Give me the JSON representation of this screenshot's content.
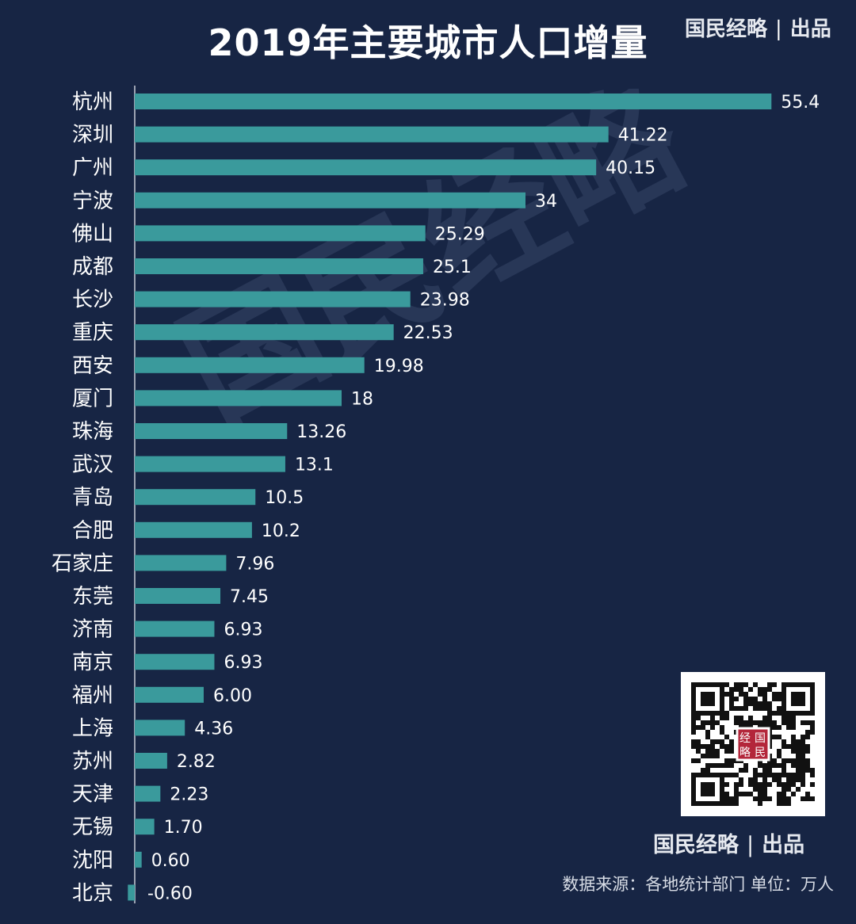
{
  "header": {
    "title": "2019年主要城市人口增量",
    "brand": "国民经略",
    "brand_suffix": "出品"
  },
  "watermark": "国民经略",
  "qr": {
    "label_1": "经",
    "label_2": "国",
    "label_3": "略",
    "label_4": "民"
  },
  "footer": {
    "brand": "国民经略",
    "brand_suffix": "出品",
    "source": "数据来源：各地统计部门  单位：万人"
  },
  "colors": {
    "background": "#172544",
    "bar": "#3a9a9c",
    "axis": "#c8cdd6",
    "text": "#ffffff"
  },
  "chart_data": {
    "type": "bar",
    "orientation": "horizontal",
    "title": "2019年主要城市人口增量",
    "unit": "万人",
    "categories": [
      "杭州",
      "深圳",
      "广州",
      "宁波",
      "佛山",
      "成都",
      "长沙",
      "重庆",
      "西安",
      "厦门",
      "珠海",
      "武汉",
      "青岛",
      "合肥",
      "石家庄",
      "东莞",
      "济南",
      "南京",
      "福州",
      "上海",
      "苏州",
      "天津",
      "无锡",
      "沈阳",
      "北京"
    ],
    "values": [
      55.4,
      41.22,
      40.15,
      34,
      25.29,
      25.1,
      23.98,
      22.53,
      19.98,
      18,
      13.26,
      13.1,
      10.5,
      10.2,
      7.96,
      7.45,
      6.93,
      6.93,
      6.0,
      4.36,
      2.82,
      2.23,
      1.7,
      0.6,
      -0.6
    ],
    "value_labels": [
      "55.4",
      "41.22",
      "40.15",
      "34",
      "25.29",
      "25.1",
      "23.98",
      "22.53",
      "19.98",
      "18",
      "13.26",
      "13.1",
      "10.5",
      "10.2",
      "7.96",
      "7.45",
      "6.93",
      "6.93",
      "6.00",
      "4.36",
      "2.82",
      "2.23",
      "1.70",
      "0.60",
      "-0.60"
    ],
    "xlim": [
      -0.6,
      55.4
    ],
    "grid": false,
    "legend": "none"
  }
}
